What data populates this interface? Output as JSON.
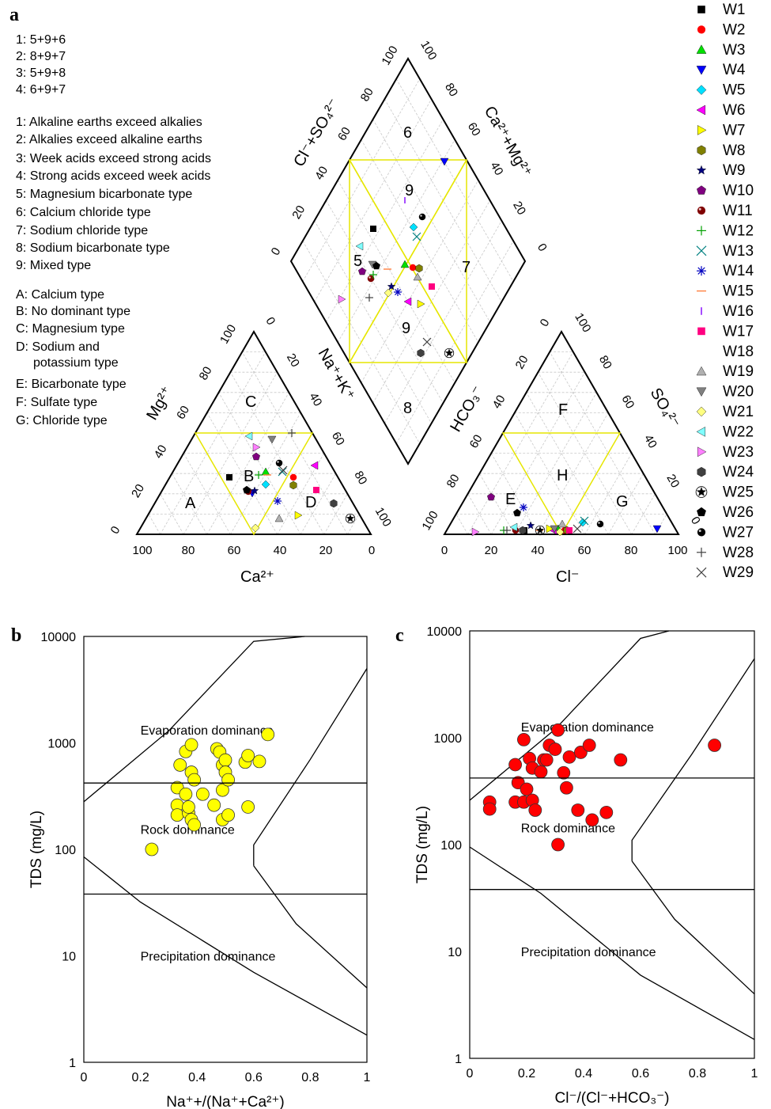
{
  "panels": {
    "a": "a",
    "b": "b",
    "c": "c"
  },
  "piper": {
    "notes_combos": [
      "1: 5+9+6",
      "2: 8+9+7",
      "3: 5+9+8",
      "4: 6+9+7"
    ],
    "notes_types": [
      "1: Alkaline earths exceed alkalies",
      "2: Alkalies exceed alkaline earths",
      "3: Week acids exceed strong acids",
      "4: Strong acids exceed week acids",
      "5: Magnesium bicarbonate type",
      "6: Calcium chloride type",
      "7: Sodium chloride type",
      "8: Sodium bicarbonate type",
      "9: Mixed type"
    ],
    "notes_classes": [
      "A: Calcium type",
      "B: No dominant type",
      "C: Magnesium type",
      "D: Sodium and",
      "potassium type",
      "E: Bicarbonate type",
      "F: Sulfate type",
      "G: Chloride type"
    ],
    "cation_labels": {
      "A": "A",
      "B": "B",
      "C": "C",
      "D": "D"
    },
    "anion_labels": {
      "E": "E",
      "F": "F",
      "G": "G",
      "H": "H"
    },
    "diamond_labels": {
      "d5": "5",
      "d6": "6",
      "d7": "7",
      "d8": "8",
      "d9a": "9",
      "d9b": "9"
    },
    "axes": {
      "ca": "Ca²⁺",
      "mg": "Mg²⁺",
      "nak": "Na⁺+K⁺",
      "cl": "Cl⁻",
      "hco3": "HCO₃⁻",
      "so4": "SO₄²⁻",
      "clso4": "Cl⁻+SO₄²⁻",
      "camg": "Ca²⁺+Mg²⁺"
    },
    "tick_labels": [
      "0",
      "20",
      "40",
      "60",
      "80",
      "100"
    ]
  },
  "legend": [
    {
      "label": "W1",
      "marker": "square",
      "color": "#000000"
    },
    {
      "label": "W2",
      "marker": "circle",
      "color": "#ff0000"
    },
    {
      "label": "W3",
      "marker": "triangle-up",
      "color": "#00e000"
    },
    {
      "label": "W4",
      "marker": "triangle-down",
      "color": "#0000ff"
    },
    {
      "label": "W5",
      "marker": "diamond",
      "color": "#00e0ff"
    },
    {
      "label": "W6",
      "marker": "triangle-left",
      "color": "#ff00ff"
    },
    {
      "label": "W7",
      "marker": "triangle-right",
      "color": "#ffff00"
    },
    {
      "label": "W8",
      "marker": "hexagon",
      "color": "#808000"
    },
    {
      "label": "W9",
      "marker": "star",
      "color": "#000080"
    },
    {
      "label": "W10",
      "marker": "pentagon",
      "color": "#800080"
    },
    {
      "label": "W11",
      "marker": "ball",
      "color": "#800000"
    },
    {
      "label": "W12",
      "marker": "plus",
      "color": "#00a000"
    },
    {
      "label": "W13",
      "marker": "x",
      "color": "#008080"
    },
    {
      "label": "W14",
      "marker": "asterisk",
      "color": "#0000c0"
    },
    {
      "label": "W15",
      "marker": "dash",
      "color": "#ff8040"
    },
    {
      "label": "W16",
      "marker": "vline",
      "color": "#8000ff"
    },
    {
      "label": "W17",
      "marker": "square",
      "color": "#ff0080"
    },
    {
      "label": "W18",
      "marker": "none",
      "color": "#ffffff"
    },
    {
      "label": "W19",
      "marker": "triangle-up",
      "color": "#b0b0b0"
    },
    {
      "label": "W20",
      "marker": "triangle-down",
      "color": "#808080"
    },
    {
      "label": "W21",
      "marker": "diamond",
      "color": "#ffff80"
    },
    {
      "label": "W22",
      "marker": "triangle-left",
      "color": "#80ffff"
    },
    {
      "label": "W23",
      "marker": "triangle-right",
      "color": "#ff80ff"
    },
    {
      "label": "W24",
      "marker": "hexagon",
      "color": "#404040"
    },
    {
      "label": "W25",
      "marker": "star-ring",
      "color": "#000000"
    },
    {
      "label": "W26",
      "marker": "pentagon",
      "color": "#000000"
    },
    {
      "label": "W27",
      "marker": "ball",
      "color": "#000000"
    },
    {
      "label": "W28",
      "marker": "plus",
      "color": "#404040"
    },
    {
      "label": "W29",
      "marker": "x",
      "color": "#404040"
    }
  ],
  "chart_data": [
    {
      "type": "scatter",
      "panel": "b",
      "title": "",
      "xlabel": "Na⁺+/(Na⁺+Ca²⁺)",
      "ylabel": "TDS (mg/L)",
      "xlim": [
        0,
        1
      ],
      "ylim": [
        1,
        10000
      ],
      "yscale": "log",
      "xticks": [
        "0",
        "0.2",
        "0.4",
        "0.6",
        "0.8",
        "1"
      ],
      "yticks": [
        "1",
        "10",
        "100",
        "1000",
        "10000"
      ],
      "zones": [
        "Evaporation dominance",
        "Rock dominance",
        "Precipitation dominance"
      ],
      "marker_color": "#ffff00",
      "points": [
        [
          0.24,
          100
        ],
        [
          0.33,
          380
        ],
        [
          0.33,
          260
        ],
        [
          0.33,
          210
        ],
        [
          0.34,
          620
        ],
        [
          0.36,
          830
        ],
        [
          0.36,
          330
        ],
        [
          0.37,
          220
        ],
        [
          0.37,
          250
        ],
        [
          0.38,
          960
        ],
        [
          0.38,
          530
        ],
        [
          0.38,
          190
        ],
        [
          0.39,
          450
        ],
        [
          0.39,
          170
        ],
        [
          0.42,
          330
        ],
        [
          0.46,
          260
        ],
        [
          0.47,
          880
        ],
        [
          0.48,
          820
        ],
        [
          0.49,
          620
        ],
        [
          0.49,
          360
        ],
        [
          0.49,
          190
        ],
        [
          0.5,
          690
        ],
        [
          0.5,
          530
        ],
        [
          0.51,
          450
        ],
        [
          0.51,
          210
        ],
        [
          0.57,
          660
        ],
        [
          0.58,
          250
        ],
        [
          0.58,
          760
        ],
        [
          0.62,
          670
        ],
        [
          0.65,
          1200
        ]
      ]
    },
    {
      "type": "scatter",
      "panel": "c",
      "title": "",
      "xlabel": "Cl⁻/(Cl⁻+HCO₃⁻)",
      "ylabel": "TDS (mg/L)",
      "xlim": [
        0,
        1
      ],
      "ylim": [
        1,
        10000
      ],
      "yscale": "log",
      "xticks": [
        "0",
        "0.2",
        "0.4",
        "0.6",
        "0.8",
        "1"
      ],
      "yticks": [
        "1",
        "10",
        "100",
        "1000",
        "10000"
      ],
      "zones": [
        "Evaporation dominance",
        "Rock dominance",
        "Precipitation dominance"
      ],
      "marker_color": "#ff0000",
      "points": [
        [
          0.07,
          250
        ],
        [
          0.07,
          215
        ],
        [
          0.16,
          560
        ],
        [
          0.16,
          250
        ],
        [
          0.17,
          380
        ],
        [
          0.19,
          960
        ],
        [
          0.19,
          250
        ],
        [
          0.2,
          330
        ],
        [
          0.21,
          640
        ],
        [
          0.22,
          520
        ],
        [
          0.22,
          260
        ],
        [
          0.23,
          210
        ],
        [
          0.25,
          480
        ],
        [
          0.26,
          620
        ],
        [
          0.27,
          620
        ],
        [
          0.28,
          850
        ],
        [
          0.3,
          780
        ],
        [
          0.31,
          1180
        ],
        [
          0.31,
          100
        ],
        [
          0.33,
          470
        ],
        [
          0.34,
          340
        ],
        [
          0.35,
          660
        ],
        [
          0.38,
          210
        ],
        [
          0.39,
          730
        ],
        [
          0.42,
          850
        ],
        [
          0.43,
          170
        ],
        [
          0.48,
          200
        ],
        [
          0.53,
          620
        ],
        [
          0.86,
          850
        ]
      ]
    }
  ]
}
